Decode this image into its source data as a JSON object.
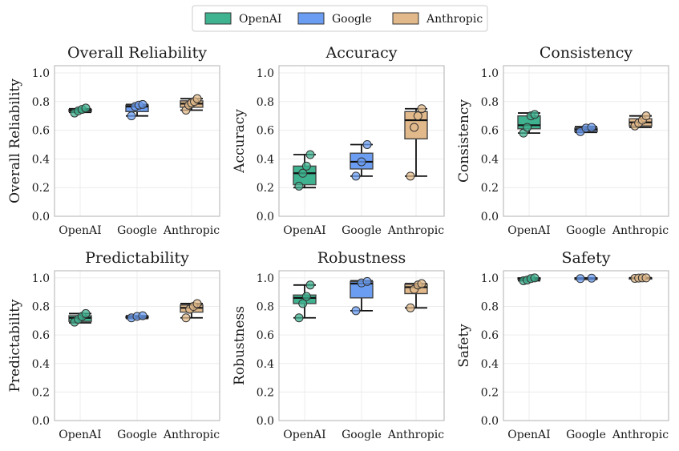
{
  "chart_data": {
    "type": "box",
    "legend": {
      "position": "top-center",
      "entries": [
        {
          "name": "OpenAI",
          "color": "#3fb28f"
        },
        {
          "name": "Google",
          "color": "#6b9df2"
        },
        {
          "name": "Anthropic",
          "color": "#e2b98a"
        }
      ]
    },
    "categories": [
      "OpenAI",
      "Google",
      "Anthropic"
    ],
    "ylim": [
      0,
      1.05
    ],
    "yticks": [
      "0.0",
      "0.2",
      "0.4",
      "0.6",
      "0.8",
      "1.0"
    ],
    "grid": true,
    "panels": [
      {
        "title": "Overall Reliability",
        "ylabel": "Overall Reliability",
        "boxes": [
          {
            "q1": 0.73,
            "median": 0.74,
            "q3": 0.745,
            "wlo": 0.725,
            "whi": 0.75,
            "points": [
              0.72,
              0.735,
              0.745,
              0.755
            ]
          },
          {
            "q1": 0.73,
            "median": 0.765,
            "q3": 0.775,
            "wlo": 0.7,
            "whi": 0.78,
            "points": [
              0.7,
              0.765,
              0.775,
              0.78
            ]
          },
          {
            "q1": 0.76,
            "median": 0.785,
            "q3": 0.805,
            "wlo": 0.74,
            "whi": 0.82,
            "points": [
              0.74,
              0.775,
              0.79,
              0.8,
              0.82
            ]
          }
        ]
      },
      {
        "title": "Accuracy",
        "ylabel": "Accuracy",
        "boxes": [
          {
            "q1": 0.22,
            "median": 0.3,
            "q3": 0.35,
            "wlo": 0.2,
            "whi": 0.43,
            "points": [
              0.21,
              0.3,
              0.35,
              0.43
            ]
          },
          {
            "q1": 0.33,
            "median": 0.38,
            "q3": 0.44,
            "wlo": 0.28,
            "whi": 0.5,
            "points": [
              0.28,
              0.38,
              0.5
            ]
          },
          {
            "q1": 0.54,
            "median": 0.67,
            "q3": 0.73,
            "wlo": 0.28,
            "whi": 0.75,
            "points": [
              0.28,
              0.62,
              0.7,
              0.75
            ]
          }
        ]
      },
      {
        "title": "Consistency",
        "ylabel": "Consistency",
        "boxes": [
          {
            "q1": 0.61,
            "median": 0.635,
            "q3": 0.7,
            "wlo": 0.58,
            "whi": 0.72,
            "points": [
              0.58,
              0.62,
              0.7,
              0.71
            ]
          },
          {
            "q1": 0.59,
            "median": 0.605,
            "q3": 0.615,
            "wlo": 0.585,
            "whi": 0.625,
            "points": [
              0.59,
              0.615,
              0.62
            ]
          },
          {
            "q1": 0.63,
            "median": 0.655,
            "q3": 0.68,
            "wlo": 0.62,
            "whi": 0.7,
            "points": [
              0.63,
              0.65,
              0.67,
              0.7
            ]
          }
        ]
      },
      {
        "title": "Predictability",
        "ylabel": "Predictability",
        "boxes": [
          {
            "q1": 0.695,
            "median": 0.72,
            "q3": 0.735,
            "wlo": 0.685,
            "whi": 0.75,
            "points": [
              0.69,
              0.71,
              0.73,
              0.75
            ]
          },
          {
            "q1": 0.72,
            "median": 0.725,
            "q3": 0.73,
            "wlo": 0.715,
            "whi": 0.735,
            "points": [
              0.72,
              0.73,
              0.735
            ]
          },
          {
            "q1": 0.76,
            "median": 0.79,
            "q3": 0.81,
            "wlo": 0.72,
            "whi": 0.82,
            "points": [
              0.72,
              0.78,
              0.8,
              0.82
            ]
          }
        ]
      },
      {
        "title": "Robustness",
        "ylabel": "Robustness",
        "boxes": [
          {
            "q1": 0.82,
            "median": 0.86,
            "q3": 0.88,
            "wlo": 0.72,
            "whi": 0.95,
            "points": [
              0.72,
              0.82,
              0.87,
              0.95
            ]
          },
          {
            "q1": 0.86,
            "median": 0.96,
            "q3": 0.975,
            "wlo": 0.77,
            "whi": 0.98,
            "points": [
              0.77,
              0.965,
              0.975
            ]
          },
          {
            "q1": 0.89,
            "median": 0.935,
            "q3": 0.955,
            "wlo": 0.79,
            "whi": 0.96,
            "points": [
              0.79,
              0.92,
              0.95,
              0.96
            ]
          }
        ]
      },
      {
        "title": "Safety",
        "ylabel": "Safety",
        "boxes": [
          {
            "q1": 0.99,
            "median": 0.995,
            "q3": 1.0,
            "wlo": 0.98,
            "whi": 1.0,
            "points": [
              0.98,
              0.985,
              0.995,
              1.0
            ]
          },
          {
            "q1": 0.995,
            "median": 0.997,
            "q3": 1.0,
            "wlo": 0.99,
            "whi": 1.0,
            "points": [
              0.995,
              0.998
            ]
          },
          {
            "q1": 0.998,
            "median": 1.0,
            "q3": 1.0,
            "wlo": 0.995,
            "whi": 1.0,
            "points": [
              0.997,
              0.999,
              1.0,
              1.0
            ]
          }
        ]
      }
    ]
  }
}
